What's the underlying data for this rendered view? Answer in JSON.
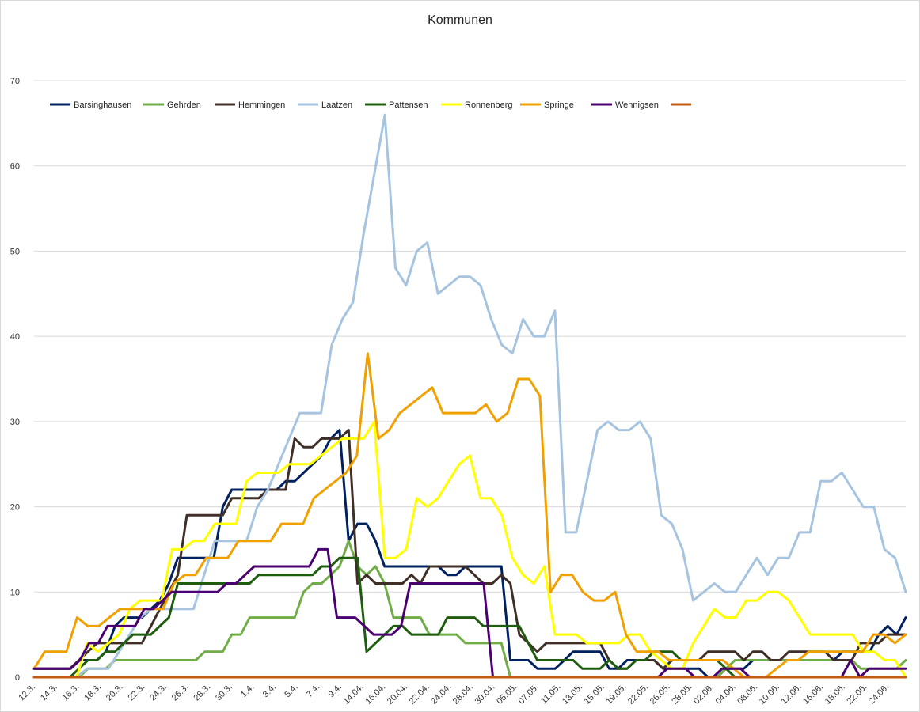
{
  "chart_data": {
    "type": "line",
    "title": "Kommunen",
    "xlabel": "",
    "ylabel": "",
    "ylim": [
      0,
      70
    ],
    "yticks": [
      0,
      10,
      20,
      30,
      40,
      50,
      60,
      70
    ],
    "grid": true,
    "legend_position": "top-left",
    "x_tick_labels": [
      "12.3.",
      "14.3.",
      "16.3.",
      "18.3.",
      "20.3.",
      "22.3.",
      "24.3.",
      "26.3.",
      "28.3.",
      "30.3.",
      "1.4.",
      "3.4.",
      "5.4.",
      "7.4.",
      "9.4.",
      "14.04.",
      "16.04.",
      "20.04.",
      "22.04.",
      "24.04.",
      "28.04.",
      "30.04.",
      "05.05.",
      "07.05.",
      "11.05.",
      "13.05.",
      "15.05.",
      "19.05.",
      "22.05.",
      "26.05.",
      "28.05.",
      "02.06.",
      "04.06.",
      "08.06.",
      "10.06.",
      "12.06.",
      "16.06.",
      "18.06.",
      "22.06.",
      "24.06."
    ],
    "series": [
      {
        "name": "Barsinghausen",
        "color": "#002060",
        "values": [
          1,
          1,
          1,
          1,
          1,
          2,
          2,
          2,
          3,
          6,
          7,
          7,
          7,
          8,
          9,
          11,
          14,
          14,
          14,
          14,
          14,
          20,
          22,
          22,
          22,
          22,
          22,
          22,
          23,
          23,
          24,
          25,
          26,
          28,
          29,
          16,
          18,
          18,
          16,
          13,
          13,
          13,
          13,
          13,
          13,
          13,
          12,
          12,
          13,
          13,
          13,
          13,
          13,
          2,
          2,
          2,
          1,
          1,
          1,
          2,
          3,
          3,
          3,
          3,
          1,
          1,
          2,
          2,
          2,
          2,
          1,
          1,
          1,
          1,
          1,
          0,
          0,
          1,
          1,
          1,
          2,
          2,
          2,
          2,
          2,
          2,
          2,
          2,
          2,
          2,
          3,
          3,
          3,
          3,
          5,
          6,
          5,
          7
        ]
      },
      {
        "name": "Gehrden",
        "color": "#70ad47",
        "values": [
          0,
          0,
          0,
          0,
          0,
          0,
          1,
          1,
          1,
          2,
          2,
          2,
          2,
          2,
          2,
          2,
          2,
          2,
          2,
          3,
          3,
          3,
          5,
          5,
          7,
          7,
          7,
          7,
          7,
          7,
          10,
          11,
          11,
          12,
          13,
          16,
          13,
          12,
          13,
          11,
          7,
          7,
          7,
          7,
          5,
          5,
          5,
          5,
          4,
          4,
          4,
          4,
          4,
          0,
          0,
          0,
          0,
          0,
          0,
          0,
          0,
          0,
          0,
          0,
          0,
          0,
          0,
          0,
          0,
          0,
          0,
          0,
          0,
          0,
          0,
          0,
          0,
          1,
          2,
          2,
          2,
          2,
          2,
          2,
          2,
          2,
          2,
          2,
          2,
          2,
          2,
          2,
          1,
          1,
          1,
          1,
          1,
          2
        ]
      },
      {
        "name": "Hemmingen",
        "color": "#3f2f27",
        "values": [
          1,
          1,
          1,
          1,
          1,
          2,
          3,
          4,
          4,
          4,
          4,
          4,
          4,
          6,
          8,
          10,
          12,
          19,
          19,
          19,
          19,
          19,
          21,
          21,
          21,
          21,
          22,
          22,
          22,
          28,
          27,
          27,
          28,
          28,
          28,
          29,
          11,
          12,
          11,
          11,
          11,
          11,
          12,
          11,
          13,
          13,
          13,
          13,
          13,
          12,
          11,
          11,
          12,
          11,
          5,
          4,
          3,
          4,
          4,
          4,
          4,
          4,
          4,
          4,
          2,
          1,
          1,
          2,
          2,
          2,
          1,
          2,
          2,
          2,
          2,
          3,
          3,
          3,
          3,
          2,
          3,
          3,
          2,
          2,
          3,
          3,
          3,
          3,
          3,
          2,
          2,
          2,
          4,
          4,
          4,
          5,
          5,
          5
        ]
      },
      {
        "name": "Laatzen",
        "color": "#a6c4e0",
        "values": [
          0,
          0,
          0,
          0,
          0,
          1,
          1,
          1,
          3,
          5,
          7,
          8,
          8,
          8,
          8,
          8,
          12,
          16,
          16,
          16,
          16,
          20,
          22,
          25,
          28,
          31,
          31,
          31,
          39,
          42,
          44,
          52,
          59,
          66,
          48,
          46,
          50,
          51,
          45,
          46,
          47,
          47,
          46,
          42,
          39,
          38,
          42,
          40,
          40,
          43,
          17,
          17,
          23,
          29,
          30,
          29,
          29,
          30,
          28,
          19,
          18,
          15,
          9,
          10,
          11,
          10,
          10,
          12,
          14,
          12,
          14,
          14,
          17,
          17,
          23,
          23,
          24,
          22,
          20,
          20,
          15,
          14,
          10
        ]
      },
      {
        "name": "Pattensen",
        "color": "#1e5c0e",
        "values": [
          0,
          0,
          0,
          0,
          0,
          1,
          2,
          2,
          3,
          3,
          4,
          5,
          5,
          5,
          6,
          7,
          11,
          11,
          11,
          11,
          11,
          11,
          11,
          11,
          11,
          12,
          12,
          12,
          12,
          12,
          12,
          12,
          13,
          13,
          14,
          14,
          14,
          3,
          4,
          5,
          6,
          6,
          5,
          5,
          5,
          5,
          7,
          7,
          7,
          7,
          6,
          6,
          6,
          6,
          6,
          4,
          2,
          2,
          2,
          2,
          2,
          1,
          1,
          1,
          2,
          1,
          1,
          2,
          2,
          3,
          3,
          3,
          2,
          2,
          2,
          2,
          2,
          1,
          0,
          0,
          0,
          0,
          0,
          0,
          0,
          0,
          0,
          0,
          0,
          0,
          0,
          0,
          0,
          0,
          0,
          0,
          0,
          0
        ]
      },
      {
        "name": "Ronnenberg",
        "color": "#ffff00",
        "values": [
          0,
          0,
          0,
          0,
          0,
          4,
          3,
          4,
          5,
          8,
          9,
          9,
          9,
          15,
          15,
          16,
          16,
          18,
          18,
          18,
          23,
          24,
          24,
          24,
          25,
          25,
          25,
          26,
          27,
          28,
          28,
          28,
          30,
          14,
          14,
          15,
          21,
          20,
          21,
          23,
          25,
          26,
          21,
          21,
          19,
          14,
          12,
          11,
          13,
          5,
          5,
          5,
          4,
          4,
          4,
          4,
          5,
          5,
          3,
          2,
          1,
          1,
          4,
          6,
          8,
          7,
          7,
          9,
          9,
          10,
          10,
          9,
          7,
          5,
          5,
          5,
          5,
          5,
          3,
          3,
          2,
          2,
          0
        ]
      },
      {
        "name": "Springe",
        "color": "#f0a000",
        "values": [
          1,
          3,
          3,
          3,
          7,
          6,
          6,
          7,
          8,
          8,
          8,
          8,
          8,
          11,
          12,
          12,
          14,
          14,
          14,
          16,
          16,
          16,
          16,
          18,
          18,
          18,
          21,
          22,
          23,
          24,
          26,
          38,
          28,
          29,
          31,
          32,
          33,
          34,
          31,
          31,
          31,
          31,
          32,
          30,
          31,
          35,
          35,
          33,
          10,
          12,
          12,
          10,
          9,
          9,
          10,
          5,
          3,
          3,
          3,
          2,
          2,
          2,
          2,
          2,
          2,
          1,
          0,
          0,
          0,
          1,
          2,
          2,
          3,
          3,
          3,
          3,
          3,
          3,
          5,
          5,
          4,
          5
        ]
      },
      {
        "name": "Wennigsen",
        "color": "#4b0070",
        "values": [
          1,
          1,
          1,
          1,
          1,
          2,
          4,
          4,
          6,
          6,
          6,
          6,
          8,
          8,
          9,
          10,
          10,
          10,
          10,
          10,
          10,
          11,
          11,
          12,
          13,
          13,
          13,
          13,
          13,
          13,
          13,
          15,
          15,
          7,
          7,
          7,
          6,
          5,
          5,
          5,
          6,
          11,
          11,
          11,
          11,
          11,
          11,
          11,
          11,
          11,
          0,
          0,
          0,
          0,
          0,
          0,
          0,
          0,
          0,
          0,
          0,
          0,
          0,
          0,
          0,
          0,
          0,
          0,
          0,
          1,
          1,
          1,
          0,
          0,
          0,
          1,
          1,
          1,
          0,
          0,
          0,
          0,
          0,
          0,
          0,
          0,
          0,
          0,
          0,
          2,
          0,
          1,
          1,
          1,
          1,
          1
        ]
      },
      {
        "name": "",
        "color": "#c55a11",
        "values": [
          0,
          0,
          0,
          0,
          0,
          0,
          0,
          0,
          0,
          0,
          0,
          0,
          0,
          0,
          0,
          0,
          0,
          0,
          0,
          0,
          0,
          0,
          0,
          0,
          0,
          0,
          0,
          0,
          0,
          0,
          0,
          0,
          0,
          0,
          0,
          0,
          0,
          0,
          0,
          0,
          0,
          0,
          0,
          0,
          0,
          0,
          0,
          0,
          0,
          0,
          0,
          0,
          0,
          0,
          0,
          0,
          0,
          0,
          0,
          0,
          0,
          0,
          0,
          0,
          0,
          0,
          0,
          0,
          0,
          0,
          0,
          0,
          0,
          0,
          0,
          0,
          0,
          0,
          0,
          0,
          0,
          0,
          0,
          0,
          0,
          0,
          0,
          0,
          0,
          0,
          0,
          0,
          0,
          0,
          0,
          0,
          0,
          0
        ]
      }
    ]
  }
}
